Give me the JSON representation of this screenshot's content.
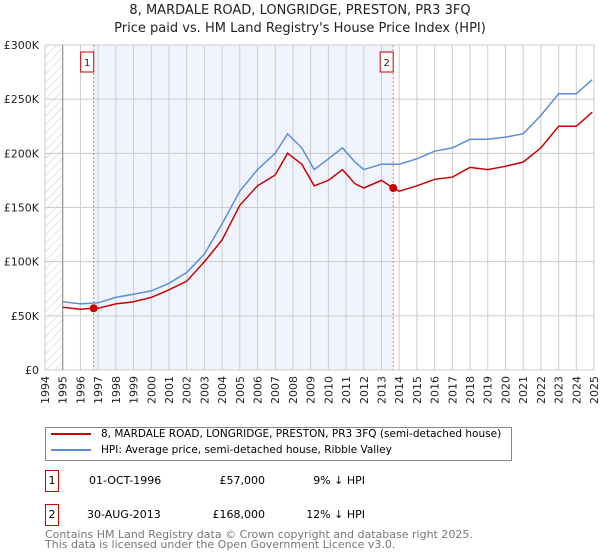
{
  "chart_data": {
    "type": "line",
    "title": "8, MARDALE ROAD, LONGRIDGE, PRESTON, PR3 3FQ",
    "subtitle": "Price paid vs. HM Land Registry's House Price Index (HPI)",
    "xlim": [
      1994,
      2025
    ],
    "ylim": [
      0,
      300000
    ],
    "x_ticks": [
      "1994",
      "1995",
      "1996",
      "1997",
      "1998",
      "1999",
      "2000",
      "2001",
      "2002",
      "2003",
      "2004",
      "2005",
      "2006",
      "2007",
      "2008",
      "2009",
      "2010",
      "2011",
      "2012",
      "2013",
      "2014",
      "2015",
      "2016",
      "2017",
      "2018",
      "2019",
      "2020",
      "2021",
      "2022",
      "2023",
      "2024",
      "2025"
    ],
    "y_ticks": [
      {
        "v": 0,
        "label": "£0"
      },
      {
        "v": 50000,
        "label": "£50K"
      },
      {
        "v": 100000,
        "label": "£100K"
      },
      {
        "v": 150000,
        "label": "£150K"
      },
      {
        "v": 200000,
        "label": "£200K"
      },
      {
        "v": 250000,
        "label": "£250K"
      },
      {
        "v": 300000,
        "label": "£300K"
      }
    ],
    "series": [
      {
        "name": "8, MARDALE ROAD, LONGRIDGE, PRESTON, PR3 3FQ (semi-detached house)",
        "color": "#cc0000",
        "x": [
          1995,
          1996,
          1996.75,
          1997,
          1998,
          1999,
          2000,
          2001,
          2002,
          2003,
          2004,
          2005,
          2006,
          2007,
          2007.7,
          2008.5,
          2009.2,
          2010,
          2010.8,
          2011.5,
          2012,
          2013,
          2013.66,
          2014,
          2015,
          2016,
          2017,
          2018,
          2019,
          2020,
          2021,
          2022,
          2023,
          2024,
          2024.9
        ],
        "y": [
          58000,
          56000,
          57000,
          57000,
          61000,
          63000,
          67000,
          74000,
          82000,
          100000,
          120000,
          152000,
          170000,
          180000,
          200000,
          190000,
          170000,
          175000,
          185000,
          172000,
          168000,
          175000,
          168000,
          165000,
          170000,
          176000,
          178000,
          187000,
          185000,
          188000,
          192000,
          205000,
          225000,
          225000,
          238000
        ]
      },
      {
        "name": "HPI: Average price, semi-detached house, Ribble Valley",
        "color": "#5b8ed6",
        "x": [
          1995,
          1996,
          1997,
          1998,
          1999,
          2000,
          2001,
          2002,
          2003,
          2004,
          2005,
          2006,
          2007,
          2007.7,
          2008.5,
          2009.2,
          2010,
          2010.8,
          2011.5,
          2012,
          2013,
          2014,
          2015,
          2016,
          2017,
          2018,
          2019,
          2020,
          2021,
          2022,
          2023,
          2024,
          2024.9
        ],
        "y": [
          63000,
          61000,
          62000,
          67000,
          70000,
          73000,
          80000,
          90000,
          107000,
          135000,
          165000,
          185000,
          200000,
          218000,
          205000,
          185000,
          195000,
          205000,
          192000,
          185000,
          190000,
          190000,
          195000,
          202000,
          205000,
          213000,
          213000,
          215000,
          218000,
          235000,
          255000,
          255000,
          268000
        ]
      }
    ],
    "sales": [
      {
        "label": "1",
        "x": 1996.75,
        "y": 57000
      },
      {
        "label": "2",
        "x": 2013.66,
        "y": 168000
      }
    ],
    "shaded_range": [
      1996.75,
      2013.66
    ],
    "hatched_range": [
      1994,
      1995
    ]
  },
  "table": [
    {
      "n": "1",
      "date": "01-OCT-1996",
      "price": "£57,000",
      "hpi": "9% ↓ HPI"
    },
    {
      "n": "2",
      "date": "30-AUG-2013",
      "price": "£168,000",
      "hpi": "12% ↓ HPI"
    }
  ],
  "footer": [
    "Contains HM Land Registry data © Crown copyright and database right 2025.",
    "This data is licensed under the Open Government Licence v3.0."
  ]
}
